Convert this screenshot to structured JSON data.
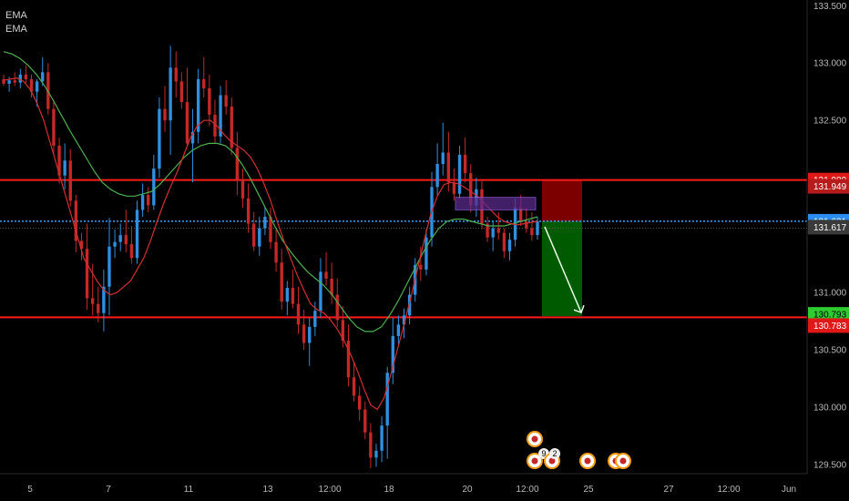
{
  "legend": [
    "EMA",
    "EMA"
  ],
  "colors": {
    "background": "#000000",
    "up_candle": "#2f8fe0",
    "down_candle": "#c62828",
    "ema_fast": "#d32f2f",
    "ema_slow": "#4caf50",
    "level_line": "#ff1a1a",
    "current_price_line": "#3d9df0",
    "stop_zone": "#8b0000",
    "target_zone": "#006400",
    "entry_box": "#5a2a8a"
  },
  "chart_data": {
    "type": "candlestick",
    "title": "",
    "ylim": [
      129.42,
      133.55
    ],
    "y_ticks": [
      "133.500",
      "133.000",
      "132.500",
      "131.000",
      "130.500",
      "130.000",
      "129.500"
    ],
    "x_ticks": [
      "5",
      "7",
      "11",
      "13",
      "12:00",
      "18",
      "20",
      "12:00",
      "25",
      "27",
      "12:00",
      "Jun"
    ],
    "price_tags": [
      {
        "label": "131.980",
        "value": 131.98,
        "color": "#e01818",
        "text_color": "#ffffff"
      },
      {
        "label": "131.949",
        "value": 131.949,
        "color": "#b71c1c",
        "text_color": "#ffffff"
      },
      {
        "label": "131.621",
        "value": 131.621,
        "color": "#2b8cf2",
        "text_color": "#ffffff"
      },
      {
        "label": "131.617",
        "value": 131.617,
        "color": "#3a3a3a",
        "text_color": "#ffffff"
      },
      {
        "label": "130.793",
        "value": 130.793,
        "color": "#2ecc2e",
        "text_color": "#000000"
      },
      {
        "label": "130.783",
        "value": 130.783,
        "color": "#e01818",
        "text_color": "#ffffff"
      }
    ],
    "horizontal_levels": [
      131.98,
      130.783
    ],
    "current_price": 131.621,
    "trade_setup": {
      "entry": 131.621,
      "stop": 131.98,
      "target": 130.793,
      "direction": "short"
    },
    "entry_box": {
      "low": 131.72,
      "high": 131.83
    },
    "events": [
      "9",
      "2"
    ],
    "candles": [
      [
        132.86,
        132.9,
        132.8,
        132.82
      ],
      [
        132.82,
        132.88,
        132.75,
        132.85
      ],
      [
        132.85,
        132.92,
        132.8,
        132.83
      ],
      [
        132.83,
        132.95,
        132.78,
        132.9
      ],
      [
        132.9,
        132.98,
        132.82,
        132.86
      ],
      [
        132.86,
        132.9,
        132.7,
        132.75
      ],
      [
        132.75,
        132.86,
        132.62,
        132.84
      ],
      [
        132.84,
        133.05,
        132.8,
        132.92
      ],
      [
        132.92,
        133.0,
        132.55,
        132.6
      ],
      [
        132.6,
        132.68,
        132.2,
        132.28
      ],
      [
        132.28,
        132.35,
        131.95,
        132.02
      ],
      [
        132.02,
        132.3,
        131.9,
        132.15
      ],
      [
        132.15,
        132.25,
        131.75,
        131.8
      ],
      [
        131.8,
        131.85,
        131.35,
        131.45
      ],
      [
        131.45,
        131.52,
        131.28,
        131.38
      ],
      [
        131.38,
        131.6,
        130.85,
        130.95
      ],
      [
        130.95,
        131.25,
        130.8,
        130.9
      ],
      [
        130.9,
        131.05,
        130.74,
        130.82
      ],
      [
        130.82,
        131.2,
        130.66,
        131.05
      ],
      [
        131.05,
        131.65,
        130.8,
        131.4
      ],
      [
        131.4,
        131.55,
        131.3,
        131.44
      ],
      [
        131.44,
        131.6,
        131.36,
        131.5
      ],
      [
        131.5,
        131.72,
        131.35,
        131.42
      ],
      [
        131.42,
        131.58,
        131.25,
        131.3
      ],
      [
        131.3,
        131.8,
        131.25,
        131.72
      ],
      [
        131.72,
        131.95,
        131.66,
        131.85
      ],
      [
        131.85,
        131.92,
        131.7,
        131.76
      ],
      [
        131.76,
        132.2,
        131.72,
        132.08
      ],
      [
        132.08,
        132.7,
        132.0,
        132.6
      ],
      [
        132.6,
        132.8,
        132.4,
        132.5
      ],
      [
        132.5,
        133.15,
        132.2,
        132.96
      ],
      [
        132.96,
        133.1,
        132.7,
        132.84
      ],
      [
        132.84,
        132.92,
        132.6,
        132.66
      ],
      [
        132.66,
        132.96,
        132.28,
        132.3
      ],
      [
        132.3,
        132.6,
        131.96,
        132.4
      ],
      [
        132.4,
        132.95,
        132.3,
        132.86
      ],
      [
        132.86,
        133.05,
        132.7,
        132.78
      ],
      [
        132.78,
        132.9,
        132.45,
        132.55
      ],
      [
        132.55,
        132.68,
        132.3,
        132.36
      ],
      [
        132.36,
        132.8,
        132.3,
        132.72
      ],
      [
        132.72,
        132.85,
        132.55,
        132.62
      ],
      [
        132.62,
        132.7,
        132.2,
        132.26
      ],
      [
        132.26,
        132.4,
        131.85,
        131.98
      ],
      [
        131.98,
        132.08,
        131.74,
        131.82
      ],
      [
        131.82,
        131.95,
        131.52,
        131.6
      ],
      [
        131.6,
        131.7,
        131.36,
        131.4
      ],
      [
        131.4,
        131.66,
        131.32,
        131.56
      ],
      [
        131.56,
        131.74,
        131.5,
        131.66
      ],
      [
        131.66,
        131.74,
        131.38,
        131.44
      ],
      [
        131.44,
        131.55,
        131.18,
        131.26
      ],
      [
        131.26,
        131.38,
        130.85,
        130.92
      ],
      [
        130.92,
        131.1,
        130.8,
        131.04
      ],
      [
        131.04,
        131.2,
        130.86,
        130.9
      ],
      [
        130.9,
        131.05,
        130.64,
        130.72
      ],
      [
        130.72,
        130.85,
        130.5,
        130.56
      ],
      [
        130.56,
        130.78,
        130.36,
        130.7
      ],
      [
        130.7,
        130.92,
        130.62,
        130.84
      ],
      [
        130.84,
        131.3,
        130.78,
        131.18
      ],
      [
        131.18,
        131.35,
        131.06,
        131.12
      ],
      [
        131.12,
        131.26,
        130.9,
        130.98
      ],
      [
        130.98,
        131.12,
        130.7,
        130.76
      ],
      [
        130.76,
        130.88,
        130.52,
        130.58
      ],
      [
        130.58,
        130.72,
        130.18,
        130.26
      ],
      [
        130.26,
        130.4,
        130.05,
        130.1
      ],
      [
        130.1,
        130.18,
        129.88,
        129.98
      ],
      [
        129.98,
        130.05,
        129.72,
        129.78
      ],
      [
        129.78,
        129.86,
        129.47,
        129.56
      ],
      [
        129.56,
        129.68,
        129.48,
        129.62
      ],
      [
        129.62,
        129.92,
        129.52,
        129.84
      ],
      [
        129.84,
        130.35,
        129.55,
        130.3
      ],
      [
        130.3,
        130.78,
        130.2,
        130.62
      ],
      [
        130.62,
        130.8,
        130.54,
        130.72
      ],
      [
        130.72,
        130.86,
        130.6,
        130.8
      ],
      [
        130.8,
        131.05,
        130.72,
        130.98
      ],
      [
        130.98,
        131.3,
        130.92,
        131.24
      ],
      [
        131.24,
        131.4,
        131.1,
        131.2
      ],
      [
        131.2,
        131.55,
        131.15,
        131.48
      ],
      [
        131.48,
        132.05,
        131.4,
        131.92
      ],
      [
        131.92,
        132.3,
        131.85,
        132.12
      ],
      [
        132.12,
        132.48,
        132.02,
        132.22
      ],
      [
        132.22,
        132.4,
        131.88,
        131.96
      ],
      [
        131.96,
        132.08,
        131.8,
        131.86
      ],
      [
        131.86,
        132.28,
        131.82,
        132.2
      ],
      [
        132.2,
        132.35,
        131.96,
        132.04
      ],
      [
        132.04,
        132.12,
        131.7,
        131.76
      ],
      [
        131.76,
        132.0,
        131.66,
        131.9
      ],
      [
        131.9,
        131.98,
        131.55,
        131.6
      ],
      [
        131.6,
        131.66,
        131.44,
        131.48
      ],
      [
        131.48,
        131.62,
        131.36,
        131.56
      ],
      [
        131.56,
        131.7,
        131.46,
        131.52
      ],
      [
        131.52,
        131.56,
        131.3,
        131.36
      ],
      [
        131.36,
        131.52,
        131.28,
        131.46
      ],
      [
        131.46,
        131.82,
        131.4,
        131.74
      ],
      [
        131.74,
        131.85,
        131.58,
        131.62
      ],
      [
        131.62,
        131.74,
        131.52,
        131.56
      ],
      [
        131.56,
        131.7,
        131.45,
        131.5
      ],
      [
        131.5,
        131.66,
        131.46,
        131.62
      ]
    ],
    "ema_fast": [
      132.85,
      132.86,
      132.87,
      132.84,
      132.77,
      132.65,
      132.5,
      132.3,
      132.1,
      131.9,
      131.7,
      131.5,
      131.3,
      131.2,
      131.1,
      131.02,
      130.98,
      131.0,
      131.05,
      131.1,
      131.2,
      131.3,
      131.45,
      131.62,
      131.78,
      131.92,
      132.05,
      132.2,
      132.35,
      132.45,
      132.5,
      132.5,
      132.45,
      132.38,
      132.32,
      132.28,
      132.24,
      132.18,
      132.08,
      131.95,
      131.8,
      131.62,
      131.45,
      131.3,
      131.15,
      131.02,
      130.9,
      130.85,
      130.82,
      130.76,
      130.68,
      130.58,
      130.46,
      130.32,
      130.16,
      130.02,
      129.98,
      130.08,
      130.28,
      130.5,
      130.72,
      130.95,
      131.2,
      131.45,
      131.68,
      131.84,
      131.94,
      131.96,
      131.95,
      131.92,
      131.88,
      131.84,
      131.78,
      131.72,
      131.66,
      131.62,
      131.6,
      131.59,
      131.6,
      131.61,
      131.62
    ],
    "ema_slow": [
      133.1,
      133.08,
      133.04,
      132.98,
      132.9,
      132.8,
      132.68,
      132.55,
      132.42,
      132.3,
      132.18,
      132.06,
      131.96,
      131.9,
      131.86,
      131.84,
      131.84,
      131.86,
      131.88,
      131.94,
      132.02,
      132.1,
      132.18,
      132.24,
      132.28,
      132.3,
      132.3,
      132.28,
      132.22,
      132.12,
      132.0,
      131.86,
      131.72,
      131.58,
      131.45,
      131.35,
      131.26,
      131.18,
      131.12,
      131.06,
      130.98,
      130.88,
      130.78,
      130.7,
      130.66,
      130.66,
      130.7,
      130.8,
      130.92,
      131.06,
      131.2,
      131.34,
      131.46,
      131.56,
      131.62,
      131.64,
      131.64,
      131.62,
      131.6,
      131.58,
      131.58,
      131.58,
      131.6,
      131.62,
      131.64,
      131.66
    ]
  }
}
